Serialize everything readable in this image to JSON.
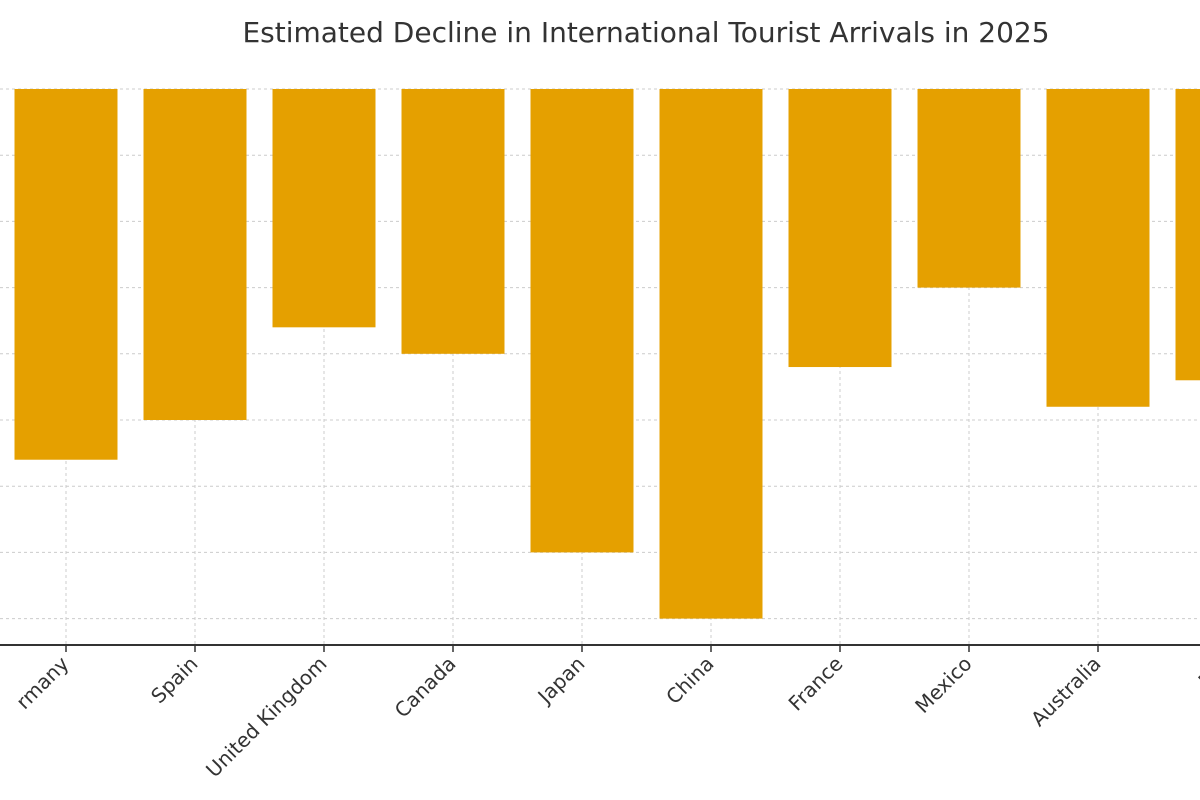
{
  "chart_data": {
    "type": "bar",
    "title": "Estimated Decline in International Tourist Arrivals in 2025",
    "categories": [
      "Germany",
      "Spain",
      "United Kingdom",
      "Canada",
      "Japan",
      "China",
      "France",
      "Mexico",
      "Australia",
      "Brazil"
    ],
    "visible_category_labels": [
      "rmany",
      "Spain",
      "United Kingdom",
      "Canada",
      "Japan",
      "China",
      "France",
      "Mexico",
      "Australia",
      "Bra"
    ],
    "values": [
      -5.6,
      -5.0,
      -3.6,
      -4.0,
      -7.0,
      -8.0,
      -4.2,
      -3.0,
      -4.8,
      -4.4
    ],
    "ylim": [
      -8.4,
      0
    ],
    "xlabel": "",
    "ylabel": "",
    "grid": true,
    "legend": false
  },
  "colors": {
    "bar": "#e5a000",
    "grid": "#cccccc",
    "axis": "#333333",
    "text": "#333333"
  }
}
